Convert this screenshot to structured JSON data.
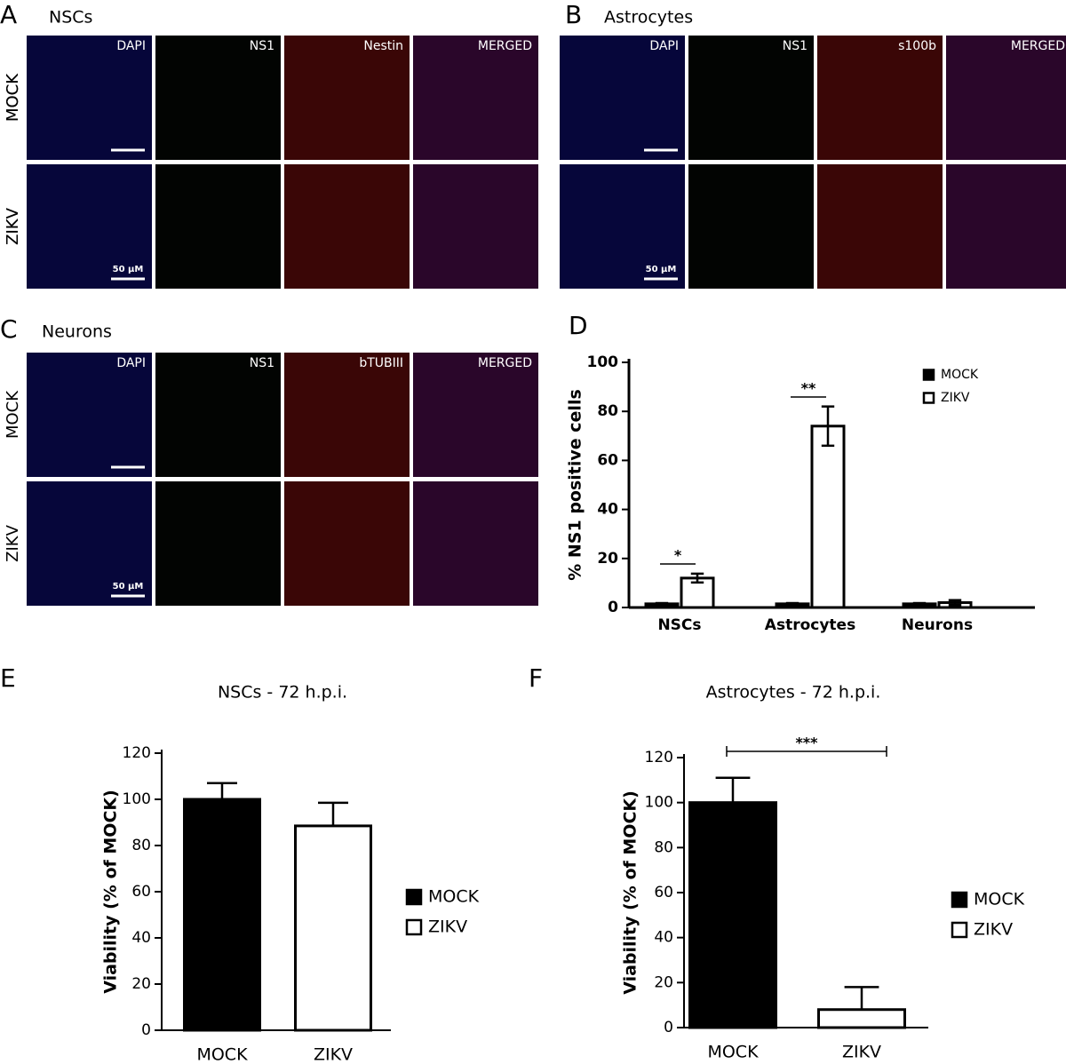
{
  "panels": [
    {
      "letter": "A",
      "title": "NSCs",
      "rows": [
        "MOCK",
        "ZIKV"
      ],
      "columns": [
        "DAPI",
        "NS1",
        "Nestin",
        "MERGED"
      ],
      "scale_bar": "50 μM"
    },
    {
      "letter": "B",
      "title": "Astrocytes",
      "rows": [
        "MOCK",
        "ZIKV"
      ],
      "columns": [
        "DAPI",
        "NS1",
        "s100b",
        "MERGED"
      ],
      "scale_bar": "50 μM"
    },
    {
      "letter": "C",
      "title": "Neurons",
      "rows": [
        "MOCK",
        "ZIKV"
      ],
      "columns": [
        "DAPI",
        "NS1",
        "bTUBIII",
        "MERGED"
      ],
      "scale_bar": "50 μM"
    }
  ],
  "chart_data": [
    {
      "type": "bar",
      "letter": "D",
      "ylabel": "% NS1 positive cells",
      "categories": [
        "NSCs",
        "Astrocytes",
        "Neurons"
      ],
      "series": [
        {
          "name": "MOCK",
          "color": "#000000",
          "values": [
            1.5,
            1.5,
            1.5
          ],
          "errors": [
            0.3,
            0.3,
            0.3
          ]
        },
        {
          "name": "ZIKV",
          "color": "#ffffff",
          "values": [
            12,
            74,
            2
          ],
          "errors": [
            1.8,
            8,
            1
          ]
        }
      ],
      "ylim": [
        0,
        100
      ],
      "yticks": [
        0,
        20,
        40,
        60,
        80,
        100
      ],
      "annotations": [
        "*",
        "**"
      ]
    },
    {
      "type": "bar",
      "letter": "E",
      "title": "NSCs - 72 h.p.i.",
      "ylabel": "Viability (% of MOCK)",
      "categories": [
        "MOCK",
        "ZIKV"
      ],
      "values": [
        100,
        88.5
      ],
      "errors": [
        7,
        10
      ],
      "colors": [
        "#000000",
        "#ffffff"
      ],
      "ylim": [
        0,
        120
      ],
      "yticks": [
        0,
        20,
        40,
        60,
        80,
        100,
        120
      ],
      "annotations": []
    },
    {
      "type": "bar",
      "letter": "F",
      "title": "Astrocytes - 72 h.p.i.",
      "ylabel": "Viability (% of MOCK)",
      "categories": [
        "MOCK",
        "ZIKV"
      ],
      "values": [
        100,
        8
      ],
      "errors": [
        11,
        10
      ],
      "colors": [
        "#000000",
        "#ffffff"
      ],
      "ylim": [
        0,
        120
      ],
      "yticks": [
        0,
        20,
        40,
        60,
        80,
        100,
        120
      ],
      "annotations": [
        "***"
      ]
    }
  ]
}
